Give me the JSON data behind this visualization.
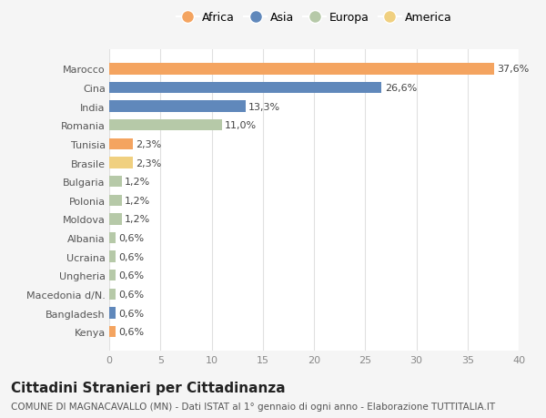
{
  "categories": [
    "Kenya",
    "Bangladesh",
    "Macedonia d/N.",
    "Ungheria",
    "Ucraina",
    "Albania",
    "Moldova",
    "Polonia",
    "Bulgaria",
    "Brasile",
    "Tunisia",
    "Romania",
    "India",
    "Cina",
    "Marocco"
  ],
  "values": [
    0.6,
    0.6,
    0.6,
    0.6,
    0.6,
    0.6,
    1.2,
    1.2,
    1.2,
    2.3,
    2.3,
    11.0,
    13.3,
    26.6,
    37.6
  ],
  "labels": [
    "0,6%",
    "0,6%",
    "0,6%",
    "0,6%",
    "0,6%",
    "0,6%",
    "1,2%",
    "1,2%",
    "1,2%",
    "2,3%",
    "2,3%",
    "11,0%",
    "13,3%",
    "26,6%",
    "37,6%"
  ],
  "colors": [
    "#f4a460",
    "#6088bb",
    "#b6c9a8",
    "#b6c9a8",
    "#b6c9a8",
    "#b6c9a8",
    "#b6c9a8",
    "#b6c9a8",
    "#b6c9a8",
    "#f0d080",
    "#f4a460",
    "#b6c9a8",
    "#6088bb",
    "#6088bb",
    "#f4a460"
  ],
  "legend_labels": [
    "Africa",
    "Asia",
    "Europa",
    "America"
  ],
  "legend_colors": [
    "#f4a460",
    "#6088bb",
    "#b6c9a8",
    "#f0d080"
  ],
  "title": "Cittadini Stranieri per Cittadinanza",
  "subtitle": "COMUNE DI MAGNACAVALLO (MN) - Dati ISTAT al 1° gennaio di ogni anno - Elaborazione TUTTITALIA.IT",
  "xlim": [
    0,
    40
  ],
  "xticks": [
    0,
    5,
    10,
    15,
    20,
    25,
    30,
    35,
    40
  ],
  "bg_color": "#f5f5f5",
  "plot_bg_color": "#ffffff",
  "grid_color": "#e0e0e0",
  "bar_height": 0.6,
  "title_fontsize": 11,
  "subtitle_fontsize": 7.5,
  "label_fontsize": 8,
  "tick_fontsize": 8,
  "legend_fontsize": 9
}
